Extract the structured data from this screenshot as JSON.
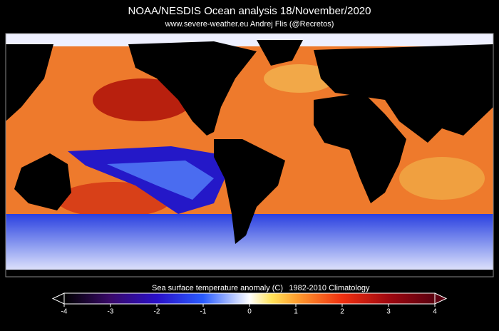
{
  "header": {
    "title": "NOAA/NESDIS Ocean analysis 18/November/2020",
    "subtitle": "www.severe-weather.eu  Andrej Flis (@Recretos)"
  },
  "colorbar": {
    "label": "Sea surface temperature anomaly (C)",
    "climatology": "1982-2010 Climatology",
    "range": [
      -4,
      4
    ],
    "ticks": [
      -4,
      -3,
      -2,
      -1,
      0,
      1,
      2,
      3,
      4
    ]
  }
}
